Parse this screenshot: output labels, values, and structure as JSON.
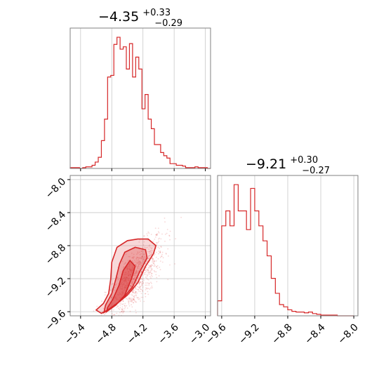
{
  "colors": {
    "series": "#d62728",
    "grid": "#c8c8c8",
    "frame": "#808080"
  },
  "chart_data": [
    {
      "type": "histogram",
      "panel": "top-left",
      "title": {
        "value": "−4.35",
        "plus": "+0.33",
        "minus": "−0.29"
      },
      "xlim": [
        -5.6,
        -2.9
      ],
      "grid": true,
      "x_ticks": [
        -5.4,
        -4.8,
        -4.2,
        -3.6,
        -3.0
      ],
      "bin_edges": [
        -5.6,
        -5.54,
        -5.48,
        -5.42,
        -5.36,
        -5.3,
        -5.24,
        -5.18,
        -5.12,
        -5.06,
        -5.0,
        -4.94,
        -4.88,
        -4.82,
        -4.76,
        -4.7,
        -4.64,
        -4.58,
        -4.52,
        -4.46,
        -4.4,
        -4.34,
        -4.28,
        -4.22,
        -4.16,
        -4.1,
        -4.04,
        -3.98,
        -3.92,
        -3.86,
        -3.8,
        -3.74,
        -3.68,
        -3.62,
        -3.56,
        -3.5,
        -3.44,
        -3.38,
        -3.32,
        -3.26,
        -3.2,
        -3.14,
        -3.08,
        -3.02,
        -2.96,
        -2.9
      ],
      "counts": [
        1,
        1,
        1,
        0,
        1,
        2,
        2,
        4,
        8,
        14,
        35,
        62,
        115,
        117,
        156,
        165,
        150,
        153,
        125,
        157,
        115,
        140,
        125,
        75,
        93,
        62,
        50,
        30,
        30,
        20,
        16,
        13,
        6,
        6,
        4,
        4,
        3,
        1,
        1,
        1,
        2,
        1,
        1,
        1,
        0
      ]
    },
    {
      "type": "scatter-contour",
      "panel": "bottom-left",
      "xlim": [
        -5.6,
        -2.9
      ],
      "ylim": [
        -9.65,
        -7.95
      ],
      "grid": true,
      "x_ticks": [
        -5.4,
        -4.8,
        -4.2,
        -3.6,
        -3.0
      ],
      "y_ticks": [
        -8.0,
        -8.4,
        -8.8,
        -9.2,
        -9.6
      ],
      "contours": [
        [
          [
            -5.0,
            -9.62
          ],
          [
            -4.88,
            -9.58
          ],
          [
            -4.7,
            -9.5
          ],
          [
            -4.5,
            -9.4
          ],
          [
            -4.3,
            -9.25
          ],
          [
            -4.15,
            -9.05
          ],
          [
            -4.0,
            -8.9
          ],
          [
            -3.95,
            -8.8
          ],
          [
            -4.1,
            -8.72
          ],
          [
            -4.3,
            -8.72
          ],
          [
            -4.5,
            -8.74
          ],
          [
            -4.7,
            -8.82
          ],
          [
            -4.8,
            -9.0
          ],
          [
            -4.82,
            -9.2
          ],
          [
            -4.86,
            -9.38
          ],
          [
            -4.96,
            -9.5
          ],
          [
            -5.1,
            -9.58
          ]
        ],
        [
          [
            -4.95,
            -9.61
          ],
          [
            -4.8,
            -9.55
          ],
          [
            -4.6,
            -9.45
          ],
          [
            -4.4,
            -9.3
          ],
          [
            -4.25,
            -9.1
          ],
          [
            -4.12,
            -8.95
          ],
          [
            -4.15,
            -8.85
          ],
          [
            -4.35,
            -8.82
          ],
          [
            -4.55,
            -8.88
          ],
          [
            -4.65,
            -9.02
          ],
          [
            -4.72,
            -9.2
          ],
          [
            -4.8,
            -9.38
          ],
          [
            -4.92,
            -9.52
          ]
        ],
        [
          [
            -4.9,
            -9.6
          ],
          [
            -4.72,
            -9.52
          ],
          [
            -4.55,
            -9.4
          ],
          [
            -4.42,
            -9.2
          ],
          [
            -4.35,
            -9.05
          ],
          [
            -4.45,
            -8.98
          ],
          [
            -4.58,
            -9.1
          ],
          [
            -4.66,
            -9.28
          ],
          [
            -4.78,
            -9.45
          ],
          [
            -4.88,
            -9.55
          ]
        ]
      ]
    },
    {
      "type": "histogram",
      "panel": "bottom-right",
      "title": {
        "value": "−9.21",
        "plus": "+0.30",
        "minus": "−0.27"
      },
      "xlim": [
        -9.65,
        -7.95
      ],
      "grid": true,
      "x_ticks": [
        -9.6,
        -9.2,
        -8.8,
        -8.4,
        -8.0
      ],
      "bin_edges": [
        -9.65,
        -9.6,
        -9.55,
        -9.5,
        -9.45,
        -9.4,
        -9.35,
        -9.3,
        -9.25,
        -9.2,
        -9.15,
        -9.1,
        -9.05,
        -9.0,
        -8.95,
        -8.9,
        -8.85,
        -8.8,
        -8.75,
        -8.7,
        -8.65,
        -8.6,
        -8.55,
        -8.5,
        -8.45,
        -8.4,
        -8.35,
        -8.3,
        -8.25,
        -8.2,
        -8.15,
        -8.1,
        -8.05,
        -8.0
      ],
      "counts": [
        20,
        120,
        140,
        120,
        175,
        140,
        140,
        115,
        170,
        140,
        120,
        100,
        80,
        50,
        30,
        15,
        12,
        8,
        6,
        5,
        5,
        4,
        5,
        3,
        2,
        1,
        1,
        1,
        1,
        0,
        0,
        0,
        0
      ]
    }
  ]
}
